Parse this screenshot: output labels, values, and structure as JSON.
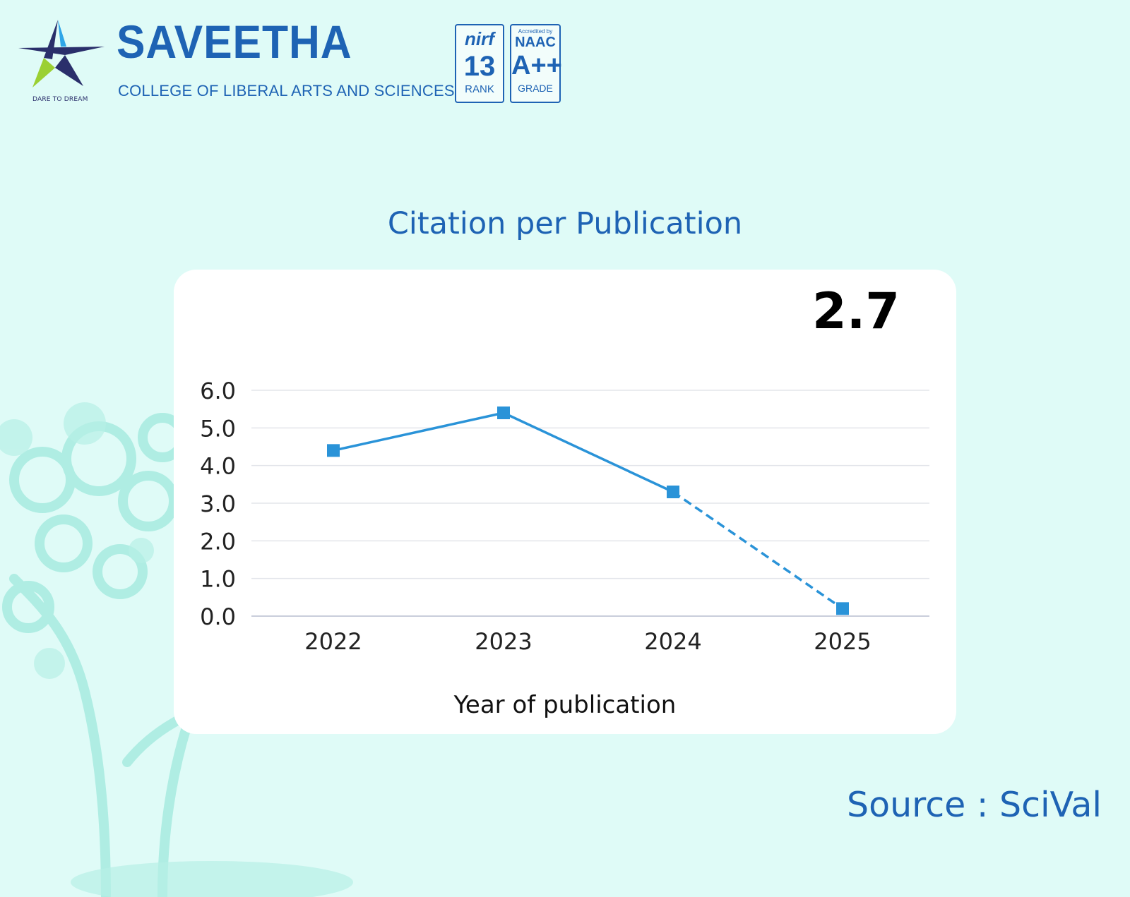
{
  "header": {
    "brand_name": "SAVEETHA",
    "brand_subtitle": "COLLEGE OF LIBERAL ARTS AND SCIENCES",
    "logo_tagline": "DARE TO DREAM",
    "nirf_badge": {
      "logo_text": "nirf",
      "rank_number": "13",
      "rank_label": "RANK"
    },
    "naac_badge": {
      "small_text": "Accredited by",
      "name": "NAAC",
      "grade": "A++",
      "grade_label": "GRADE"
    }
  },
  "summary_value": "2.7",
  "source_text": "Source : SciVal",
  "colors": {
    "brand_blue": "#1e63b4",
    "series_blue": "#2a93d8",
    "background": "#dffbf7"
  },
  "chart_data": {
    "type": "line",
    "title": "Citation per Publication",
    "categories": [
      "2022",
      "2023",
      "2024",
      "2025"
    ],
    "series": [
      {
        "name": "Citation per Publication",
        "values": [
          4.4,
          5.4,
          3.3,
          0.2
        ],
        "dashed_from_index": 2
      }
    ],
    "y_ticks": [
      "6.0",
      "5.0",
      "4.0",
      "3.0",
      "2.0",
      "1.0",
      "0.0"
    ],
    "xlabel": "Year of publication",
    "ylabel": "",
    "ylim": [
      0,
      6
    ],
    "grid": true
  }
}
